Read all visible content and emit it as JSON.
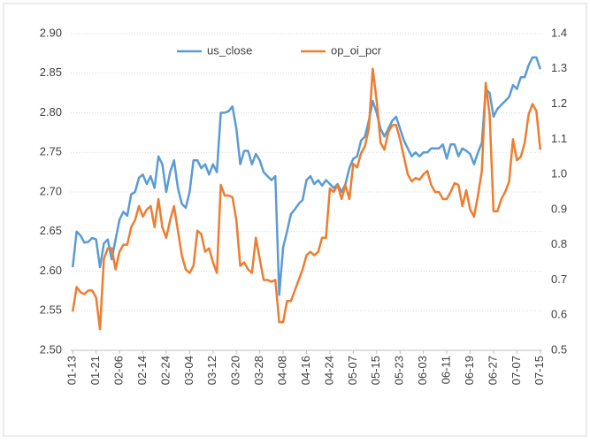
{
  "chart_data": {
    "type": "line",
    "categories": [
      "01-13",
      null,
      null,
      null,
      null,
      null,
      "01-21",
      null,
      null,
      null,
      null,
      null,
      "02-06",
      null,
      null,
      null,
      null,
      null,
      "02-14",
      null,
      null,
      null,
      null,
      null,
      "02-24",
      null,
      null,
      null,
      null,
      null,
      "03-04",
      null,
      null,
      null,
      null,
      null,
      "03-12",
      null,
      null,
      null,
      null,
      null,
      "03-20",
      null,
      null,
      null,
      null,
      null,
      "03-28",
      null,
      null,
      null,
      null,
      null,
      "04-08",
      null,
      null,
      null,
      null,
      null,
      "04-16",
      null,
      null,
      null,
      null,
      null,
      "04-24",
      null,
      null,
      null,
      null,
      null,
      "05-07",
      null,
      null,
      null,
      null,
      null,
      "05-15",
      null,
      null,
      null,
      null,
      null,
      "05-23",
      null,
      null,
      null,
      null,
      null,
      "06-03",
      null,
      null,
      null,
      null,
      null,
      "06-11",
      null,
      null,
      null,
      null,
      null,
      "06-19",
      null,
      null,
      null,
      null,
      null,
      "06-27",
      null,
      null,
      null,
      null,
      null,
      "07-07",
      null,
      null,
      null,
      null,
      null,
      "07-15"
    ],
    "series": [
      {
        "name": "us_close",
        "color": "#5b9bd5",
        "values": [
          2.605,
          2.65,
          2.645,
          2.636,
          2.637,
          2.642,
          2.64,
          2.605,
          2.635,
          2.64,
          2.615,
          2.64,
          2.665,
          2.675,
          2.67,
          2.697,
          2.7,
          2.718,
          2.722,
          2.71,
          2.72,
          2.705,
          2.745,
          2.735,
          2.7,
          2.725,
          2.74,
          2.705,
          2.685,
          2.68,
          2.7,
          2.74,
          2.74,
          2.73,
          2.735,
          2.722,
          2.735,
          2.725,
          2.8,
          2.8,
          2.802,
          2.808,
          2.78,
          2.735,
          2.752,
          2.752,
          2.735,
          2.748,
          2.74,
          2.725,
          2.72,
          2.715,
          2.72,
          2.57,
          2.63,
          2.65,
          2.672,
          2.678,
          2.685,
          2.69,
          2.715,
          2.72,
          2.71,
          2.715,
          2.708,
          2.715,
          2.71,
          2.705,
          2.71,
          2.7,
          2.71,
          2.73,
          2.742,
          2.745,
          2.765,
          2.77,
          2.79,
          2.815,
          2.8,
          2.78,
          2.77,
          2.78,
          2.79,
          2.795,
          2.78,
          2.765,
          2.755,
          2.745,
          2.75,
          2.745,
          2.75,
          2.75,
          2.755,
          2.755,
          2.755,
          2.76,
          2.742,
          2.76,
          2.76,
          2.745,
          2.755,
          2.752,
          2.748,
          2.735,
          2.75,
          2.762,
          2.83,
          2.825,
          2.795,
          2.805,
          2.81,
          2.815,
          2.82,
          2.835,
          2.83,
          2.845,
          2.845,
          2.86,
          2.87,
          2.87,
          2.855
        ]
      },
      {
        "name": "op_oi_pcr",
        "color": "#ed7d31",
        "axis": "y2",
        "values": [
          0.61,
          0.68,
          0.665,
          0.66,
          0.67,
          0.67,
          0.65,
          0.56,
          0.76,
          0.79,
          0.79,
          0.73,
          0.78,
          0.8,
          0.8,
          0.85,
          0.87,
          0.91,
          0.88,
          0.9,
          0.91,
          0.85,
          0.93,
          0.85,
          0.82,
          0.87,
          0.91,
          0.84,
          0.77,
          0.73,
          0.72,
          0.74,
          0.84,
          0.83,
          0.78,
          0.79,
          0.75,
          0.72,
          0.97,
          0.94,
          0.94,
          0.935,
          0.87,
          0.74,
          0.75,
          0.73,
          0.72,
          0.82,
          0.76,
          0.7,
          0.7,
          0.695,
          0.7,
          0.58,
          0.58,
          0.64,
          0.64,
          0.67,
          0.7,
          0.73,
          0.77,
          0.78,
          0.77,
          0.78,
          0.82,
          0.82,
          0.96,
          0.95,
          0.97,
          0.93,
          0.97,
          0.93,
          1.03,
          1.02,
          1.06,
          1.08,
          1.13,
          1.3,
          1.21,
          1.09,
          1.07,
          1.12,
          1.14,
          1.14,
          1.1,
          1.05,
          1.0,
          0.98,
          0.99,
          0.985,
          1.0,
          1.01,
          0.97,
          0.95,
          0.95,
          0.93,
          0.93,
          0.95,
          0.975,
          0.97,
          0.91,
          0.955,
          0.9,
          0.88,
          0.94,
          1.01,
          1.26,
          1.17,
          0.895,
          0.895,
          0.93,
          0.95,
          0.98,
          1.1,
          1.04,
          1.05,
          1.09,
          1.17,
          1.2,
          1.18,
          1.07
        ]
      }
    ],
    "ylim": [
      2.5,
      2.9
    ],
    "yticks": [
      {
        "value": 2.5,
        "label": "2.50"
      },
      2.55,
      {
        "value": 2.6,
        "label": "2.60"
      },
      2.65,
      {
        "value": 2.7,
        "label": "2.70"
      },
      2.75,
      {
        "value": 2.8,
        "label": "2.80"
      },
      2.85,
      {
        "value": 2.9,
        "label": "2.90"
      }
    ],
    "y2lim": [
      0.5,
      1.4
    ],
    "y2ticks": [
      0.5,
      0.6,
      0.7,
      0.8,
      0.9,
      {
        "value": 1,
        "label": "1.0"
      },
      1.1,
      1.2,
      1.3,
      1.4
    ],
    "grid": true,
    "legend": "top"
  }
}
